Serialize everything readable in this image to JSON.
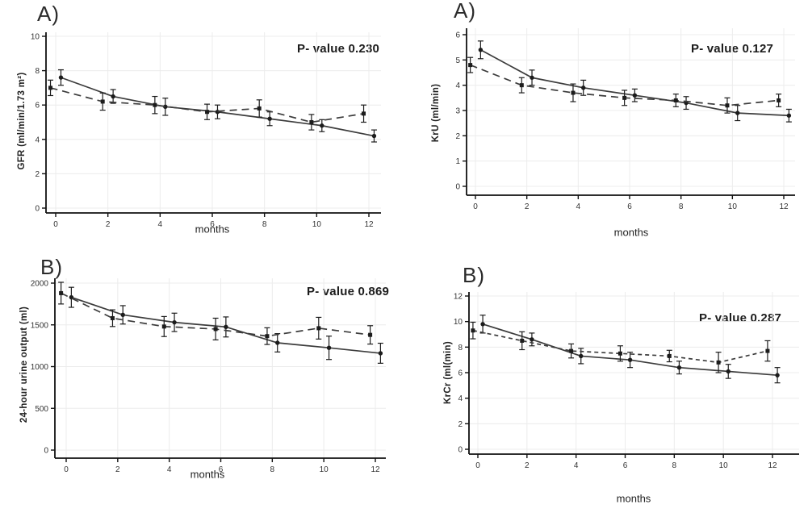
{
  "colors": {
    "background": "#ffffff",
    "line": "#3c3c3c",
    "marker": "#1c1c1c",
    "error_bar": "#1c1c1c",
    "axis": "#111111",
    "grid": "#ececec",
    "text": "#1c1c1c"
  },
  "chart_data": [
    {
      "id": "gfr",
      "type": "line",
      "panel_label": "A)",
      "p_value_label": "P- value 0.230",
      "xlabel": "months",
      "ylabel": "GFR (ml/min/1.73 m²)",
      "xlim": [
        -0.6,
        12.6
      ],
      "ylim": [
        0,
        10
      ],
      "xticks": [
        0,
        2,
        4,
        6,
        8,
        10,
        12
      ],
      "yticks": [
        0,
        2,
        4,
        6,
        8,
        10
      ],
      "grid": true,
      "legend": "none",
      "series": [
        {
          "name": "solid-group",
          "style": "solid",
          "x": [
            0.2,
            2.2,
            4.2,
            6.2,
            8.2,
            10.2,
            12.2
          ],
          "y": [
            7.6,
            6.5,
            5.9,
            5.6,
            5.2,
            4.8,
            4.2
          ],
          "err": [
            0.45,
            0.4,
            0.5,
            0.4,
            0.4,
            0.35,
            0.35
          ]
        },
        {
          "name": "dashed-group",
          "style": "dashed",
          "dash": "9,6",
          "x": [
            -0.2,
            1.8,
            3.8,
            5.8,
            7.8,
            9.8,
            11.8
          ],
          "y": [
            7.0,
            6.2,
            6.0,
            5.6,
            5.8,
            5.0,
            5.5
          ],
          "err": [
            0.45,
            0.5,
            0.5,
            0.45,
            0.5,
            0.45,
            0.5
          ]
        }
      ]
    },
    {
      "id": "kru",
      "type": "line",
      "panel_label": "A)",
      "p_value_label": "P- value 0.127",
      "xlabel": "months",
      "ylabel": "KrU (ml/min)",
      "xlim": [
        -0.6,
        12.6
      ],
      "ylim": [
        0,
        6
      ],
      "xticks": [
        0,
        2,
        4,
        6,
        8,
        10,
        12
      ],
      "yticks": [
        0,
        1,
        2,
        3,
        4,
        5,
        6
      ],
      "grid": true,
      "legend": "none",
      "series": [
        {
          "name": "solid-group",
          "style": "solid",
          "x": [
            0.2,
            2.2,
            4.2,
            6.2,
            8.2,
            10.2,
            12.2
          ],
          "y": [
            5.4,
            4.3,
            3.9,
            3.6,
            3.3,
            2.9,
            2.8
          ],
          "err": [
            0.35,
            0.3,
            0.3,
            0.25,
            0.25,
            0.3,
            0.25
          ]
        },
        {
          "name": "dashed-group",
          "style": "dashed",
          "dash": "9,6",
          "x": [
            -0.2,
            1.8,
            3.8,
            5.8,
            7.8,
            9.8,
            11.8
          ],
          "y": [
            4.8,
            4.0,
            3.7,
            3.5,
            3.4,
            3.2,
            3.4
          ],
          "err": [
            0.3,
            0.3,
            0.35,
            0.3,
            0.25,
            0.3,
            0.25
          ]
        }
      ]
    },
    {
      "id": "urine-output",
      "type": "line",
      "panel_label": "B)",
      "p_value_label": "P- value 0.869",
      "xlabel": "months",
      "ylabel": "24-hour urine output (ml)",
      "xlim": [
        -0.6,
        12.6
      ],
      "ylim": [
        0,
        2000
      ],
      "xticks": [
        0,
        2,
        4,
        6,
        8,
        10,
        12
      ],
      "yticks": [
        0,
        500,
        1000,
        1500,
        2000
      ],
      "grid": true,
      "legend": "none",
      "series": [
        {
          "name": "solid-group",
          "style": "solid",
          "x": [
            0.2,
            2.2,
            4.2,
            6.2,
            8.2,
            10.2,
            12.2
          ],
          "y": [
            1830,
            1620,
            1530,
            1475,
            1285,
            1225,
            1160
          ],
          "err": [
            120,
            110,
            110,
            120,
            110,
            140,
            120
          ]
        },
        {
          "name": "dashed-group",
          "style": "dashed",
          "dash": "9,6",
          "x": [
            -0.2,
            1.8,
            3.8,
            5.8,
            7.8,
            9.8,
            11.8
          ],
          "y": [
            1880,
            1580,
            1480,
            1450,
            1365,
            1460,
            1380
          ],
          "err": [
            130,
            100,
            120,
            130,
            100,
            130,
            110
          ]
        }
      ]
    },
    {
      "id": "krcr",
      "type": "line",
      "panel_label": "B)",
      "p_value_label": "P- value 0.287",
      "xlabel": "months",
      "ylabel": "KrCr (ml(min)",
      "xlim": [
        -0.6,
        12.6
      ],
      "ylim": [
        0,
        12
      ],
      "xticks": [
        0,
        2,
        4,
        6,
        8,
        10,
        12
      ],
      "yticks": [
        0,
        2,
        4,
        6,
        8,
        10,
        12
      ],
      "grid": true,
      "legend": "none",
      "series": [
        {
          "name": "solid-group",
          "style": "solid",
          "x": [
            0.2,
            2.2,
            4.2,
            6.2,
            8.2,
            10.2,
            12.2
          ],
          "y": [
            9.8,
            8.6,
            7.3,
            7.0,
            6.4,
            6.1,
            5.8
          ],
          "err": [
            0.7,
            0.5,
            0.6,
            0.6,
            0.5,
            0.55,
            0.6
          ]
        },
        {
          "name": "dashed-group",
          "style": "dashed",
          "dash": "5,4",
          "x": [
            -0.2,
            1.8,
            3.8,
            5.8,
            7.8,
            9.8,
            11.8
          ],
          "y": [
            9.3,
            8.5,
            7.7,
            7.5,
            7.3,
            6.8,
            7.7
          ],
          "err": [
            0.65,
            0.7,
            0.55,
            0.6,
            0.45,
            0.8,
            0.8
          ]
        }
      ]
    }
  ]
}
